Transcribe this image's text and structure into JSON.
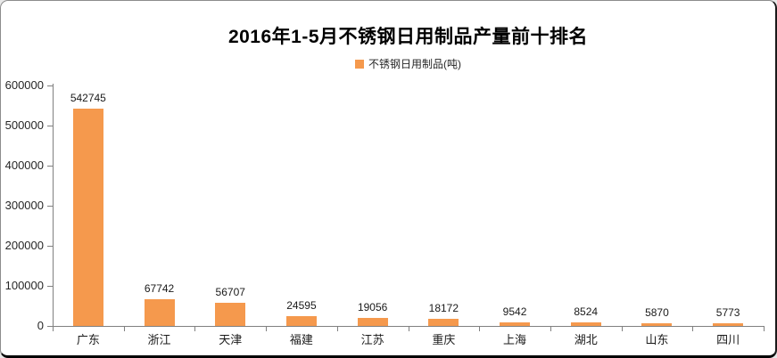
{
  "chart_data": {
    "type": "bar",
    "title": "2016年1-5月不锈钢日用制品产量前十排名",
    "legend": [
      {
        "label": "不锈钢日用制品(吨)",
        "color": "#F5994D"
      }
    ],
    "legend_position": "top-center",
    "categories": [
      "广东",
      "浙江",
      "天津",
      "福建",
      "江苏",
      "重庆",
      "上海",
      "湖北",
      "山东",
      "四川"
    ],
    "series": [
      {
        "name": "不锈钢日用制品(吨)",
        "values": [
          542745,
          67742,
          56707,
          24595,
          19056,
          18172,
          9542,
          8524,
          5870,
          5773
        ]
      }
    ],
    "value_labels": [
      "542745",
      "67742",
      "56707",
      "24595",
      "19056",
      "18172",
      "9542",
      "8524",
      "5870",
      "5773"
    ],
    "xlabel": "",
    "ylabel": "",
    "ylim": [
      0,
      600000
    ],
    "ytick_labels": [
      "0",
      "100000",
      "200000",
      "300000",
      "400000",
      "500000",
      "600000"
    ],
    "grid": false
  },
  "colors": {
    "bar": "#F5994D",
    "axis": "#808080",
    "text": "#1a1a1a"
  }
}
